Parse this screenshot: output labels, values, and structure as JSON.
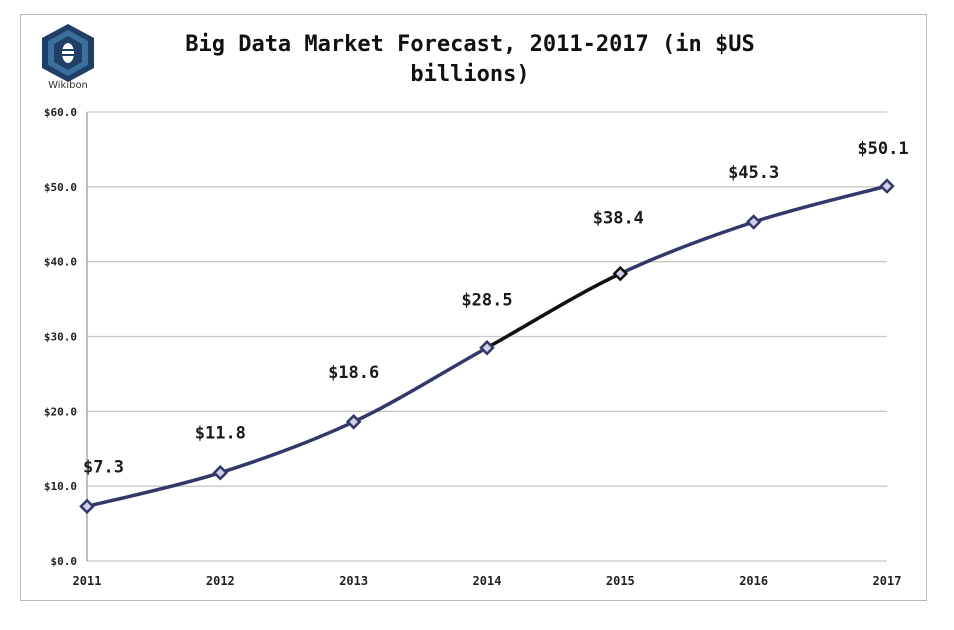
{
  "logo": {
    "text": "Wikibon",
    "icon": "wikibon-bee-hexagon-icon"
  },
  "chart_data": {
    "type": "line",
    "title": "Big Data Market Forecast, 2011-2017 (in $US billions)",
    "xlabel": "",
    "ylabel": "",
    "categories": [
      "2011",
      "2012",
      "2013",
      "2014",
      "2015",
      "2016",
      "2017"
    ],
    "values": [
      7.3,
      11.8,
      18.6,
      28.5,
      38.4,
      45.3,
      50.1
    ],
    "data_labels": [
      "$7.3",
      "$11.8",
      "$18.6",
      "$28.5",
      "$38.4",
      "$45.3",
      "$50.1"
    ],
    "ylim": [
      0,
      60
    ],
    "yticks": [
      0,
      10,
      20,
      30,
      40,
      50,
      60
    ],
    "ytick_labels": [
      "$0.0",
      "$10.0",
      "$20.0",
      "$30.0",
      "$40.0",
      "$50.0",
      "$60.0"
    ],
    "grid": true,
    "legend": "none",
    "colors": {
      "line": "#33386b",
      "highlight_segment": "#111111",
      "grid": "#c8c8c8"
    }
  }
}
